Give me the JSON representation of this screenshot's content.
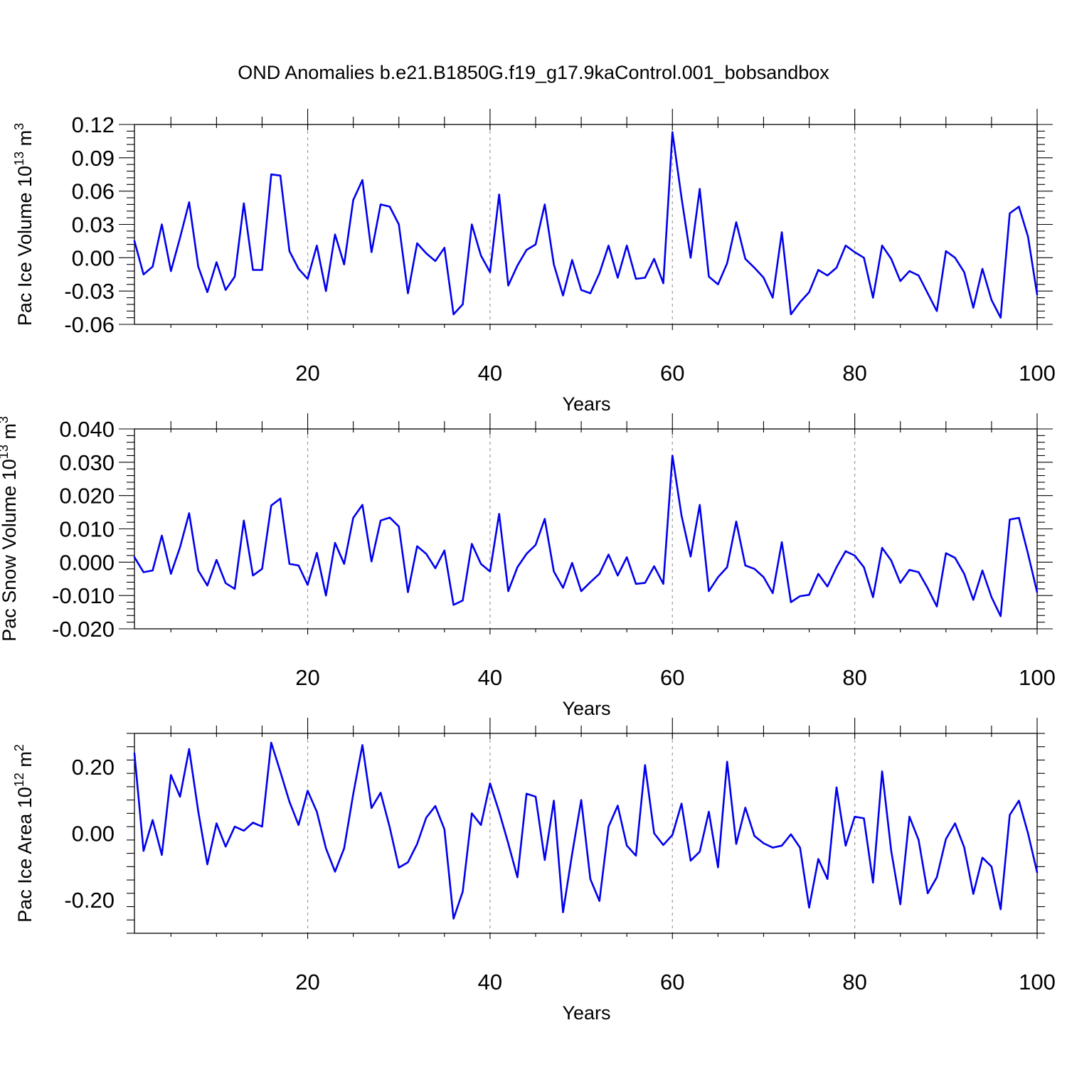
{
  "figure": {
    "title": "OND Anomalies b.e21.B1850G.f19_g17.9kaControl.001_bobsandbox",
    "line_color": "#0000ee"
  },
  "chart_data": [
    {
      "type": "line",
      "title": "",
      "xlabel": "Years",
      "ylabel": "Pac Ice Volume 10",
      "ylabel_exp": "13",
      "ylabel_unit": "m",
      "ylabel_unit_exp": "3",
      "xlim": [
        1,
        100
      ],
      "ylim": [
        -0.06,
        0.12
      ],
      "x_ticks": [
        20,
        40,
        60,
        80,
        100
      ],
      "y_ticks": [
        -0.06,
        -0.03,
        0.0,
        0.03,
        0.06,
        0.09,
        0.12
      ],
      "y_tick_labels": [
        "-0.06",
        "-0.03",
        "0.00",
        "0.03",
        "0.06",
        "0.09",
        "0.12"
      ],
      "grid": "vertical dashed at x ticks",
      "x": [
        1,
        2,
        3,
        4,
        5,
        6,
        7,
        8,
        9,
        10,
        11,
        12,
        13,
        14,
        15,
        16,
        17,
        18,
        19,
        20,
        21,
        22,
        23,
        24,
        25,
        26,
        27,
        28,
        29,
        30,
        31,
        32,
        33,
        34,
        35,
        36,
        37,
        38,
        39,
        40,
        41,
        42,
        43,
        44,
        45,
        46,
        47,
        48,
        49,
        50,
        51,
        52,
        53,
        54,
        55,
        56,
        57,
        58,
        59,
        60,
        61,
        62,
        63,
        64,
        65,
        66,
        67,
        68,
        69,
        70,
        71,
        72,
        73,
        74,
        75,
        76,
        77,
        78,
        79,
        80,
        81,
        82,
        83,
        84,
        85,
        86,
        87,
        88,
        89,
        90,
        91,
        92,
        93,
        94,
        95,
        96,
        97,
        98,
        99,
        100
      ],
      "series": [
        {
          "values": [
            0.015,
            -0.015,
            -0.008,
            0.03,
            -0.012,
            0.018,
            0.05,
            -0.008,
            -0.031,
            -0.004,
            -0.029,
            -0.017,
            0.049,
            -0.011,
            -0.011,
            0.075,
            0.074,
            0.006,
            -0.01,
            -0.019,
            0.011,
            -0.03,
            0.021,
            -0.006,
            0.052,
            0.07,
            0.005,
            0.048,
            0.046,
            0.03,
            -0.032,
            0.013,
            0.004,
            -0.003,
            0.009,
            -0.051,
            -0.042,
            0.03,
            0.002,
            -0.013,
            0.057,
            -0.025,
            -0.007,
            0.007,
            0.012,
            0.048,
            -0.006,
            -0.034,
            -0.002,
            -0.029,
            -0.032,
            -0.014,
            0.011,
            -0.018,
            0.011,
            -0.019,
            -0.018,
            -0.001,
            -0.023,
            0.113,
            0.054,
            0.0,
            0.062,
            -0.017,
            -0.024,
            -0.005,
            0.032,
            -0.001,
            -0.009,
            -0.018,
            -0.036,
            0.023,
            -0.051,
            -0.04,
            -0.031,
            -0.011,
            -0.016,
            -0.009,
            0.011,
            0.005,
            0.0,
            -0.036,
            0.011,
            -0.001,
            -0.021,
            -0.012,
            -0.016,
            -0.032,
            -0.048,
            0.006,
            0.0,
            -0.013,
            -0.045,
            -0.01,
            -0.038,
            -0.054,
            0.04,
            0.046,
            0.019,
            -0.033
          ]
        }
      ]
    },
    {
      "type": "line",
      "title": "",
      "xlabel": "Years",
      "ylabel": "Pac Snow Volume 10",
      "ylabel_exp": "13",
      "ylabel_unit": "m",
      "ylabel_unit_exp": "3",
      "xlim": [
        1,
        100
      ],
      "ylim": [
        -0.02,
        0.04
      ],
      "x_ticks": [
        20,
        40,
        60,
        80,
        100
      ],
      "y_ticks": [
        -0.02,
        -0.01,
        0.0,
        0.01,
        0.02,
        0.03,
        0.04
      ],
      "y_tick_labels": [
        "-0.020",
        "-0.010",
        "0.000",
        "0.010",
        "0.020",
        "0.030",
        "0.040"
      ],
      "grid": "vertical dashed at x ticks",
      "x": [
        1,
        2,
        3,
        4,
        5,
        6,
        7,
        8,
        9,
        10,
        11,
        12,
        13,
        14,
        15,
        16,
        17,
        18,
        19,
        20,
        21,
        22,
        23,
        24,
        25,
        26,
        27,
        28,
        29,
        30,
        31,
        32,
        33,
        34,
        35,
        36,
        37,
        38,
        39,
        40,
        41,
        42,
        43,
        44,
        45,
        46,
        47,
        48,
        49,
        50,
        51,
        52,
        53,
        54,
        55,
        56,
        57,
        58,
        59,
        60,
        61,
        62,
        63,
        64,
        65,
        66,
        67,
        68,
        69,
        70,
        71,
        72,
        73,
        74,
        75,
        76,
        77,
        78,
        79,
        80,
        81,
        82,
        83,
        84,
        85,
        86,
        87,
        88,
        89,
        90,
        91,
        92,
        93,
        94,
        95,
        96,
        97,
        98,
        99,
        100
      ],
      "series": [
        {
          "values": [
            0.0015,
            -0.003,
            -0.0025,
            0.008,
            -0.0035,
            0.0045,
            0.0147,
            -0.0025,
            -0.007,
            0.0007,
            -0.0063,
            -0.008,
            0.0125,
            -0.004,
            -0.002,
            0.017,
            0.0191,
            -0.0005,
            -0.001,
            -0.0068,
            0.0028,
            -0.01,
            0.0058,
            -0.0005,
            0.0133,
            0.0172,
            0.0002,
            0.0125,
            0.0134,
            0.0107,
            -0.009,
            0.0048,
            0.0025,
            -0.0018,
            0.0035,
            -0.0128,
            -0.0115,
            0.0055,
            -0.0005,
            -0.0028,
            0.0145,
            -0.0087,
            -0.0015,
            0.0025,
            0.0052,
            0.013,
            -0.0028,
            -0.0077,
            -0.0002,
            -0.0087,
            -0.006,
            -0.0035,
            0.0023,
            -0.004,
            0.0015,
            -0.0065,
            -0.0062,
            -0.0012,
            -0.0065,
            0.032,
            0.014,
            0.0017,
            0.0172,
            -0.0087,
            -0.0045,
            -0.0015,
            0.0122,
            -0.001,
            -0.002,
            -0.0045,
            -0.0093,
            0.006,
            -0.012,
            -0.0102,
            -0.0098,
            -0.0035,
            -0.0073,
            -0.0015,
            0.0033,
            0.002,
            -0.0015,
            -0.0105,
            0.0043,
            0.0005,
            -0.0062,
            -0.0023,
            -0.003,
            -0.0078,
            -0.0133,
            0.0027,
            0.0013,
            -0.0035,
            -0.0113,
            -0.0025,
            -0.0105,
            -0.0162,
            0.0128,
            0.0133,
            0.0025,
            -0.009
          ]
        }
      ]
    },
    {
      "type": "line",
      "title": "",
      "xlabel": "Years",
      "ylabel": "Pac Ice Area 10",
      "ylabel_exp": "12",
      "ylabel_unit": "m",
      "ylabel_unit_exp": "2",
      "xlim": [
        1,
        100
      ],
      "ylim": [
        -0.3,
        0.3
      ],
      "x_ticks": [
        20,
        40,
        60,
        80,
        100
      ],
      "y_ticks": [
        -0.2,
        0.0,
        0.2
      ],
      "y_tick_labels": [
        "-0.20",
        "0.00",
        "0.20"
      ],
      "grid": "vertical dashed at x ticks",
      "x": [
        1,
        2,
        3,
        4,
        5,
        6,
        7,
        8,
        9,
        10,
        11,
        12,
        13,
        14,
        15,
        16,
        17,
        18,
        19,
        20,
        21,
        22,
        23,
        24,
        25,
        26,
        27,
        28,
        29,
        30,
        31,
        32,
        33,
        34,
        35,
        36,
        37,
        38,
        39,
        40,
        41,
        42,
        43,
        44,
        45,
        46,
        47,
        48,
        49,
        50,
        51,
        52,
        53,
        54,
        55,
        56,
        57,
        58,
        59,
        60,
        61,
        62,
        63,
        64,
        65,
        66,
        67,
        68,
        69,
        70,
        71,
        72,
        73,
        74,
        75,
        76,
        77,
        78,
        79,
        80,
        81,
        82,
        83,
        84,
        85,
        86,
        87,
        88,
        89,
        90,
        91,
        92,
        93,
        94,
        95,
        96,
        97,
        98,
        99,
        100
      ],
      "series": [
        {
          "values": [
            0.24,
            -0.053,
            0.04,
            -0.065,
            0.175,
            0.11,
            0.253,
            0.066,
            -0.093,
            0.03,
            -0.04,
            0.02,
            0.008,
            0.032,
            0.02,
            0.272,
            0.185,
            0.095,
            0.025,
            0.128,
            0.065,
            -0.045,
            -0.115,
            -0.045,
            0.118,
            0.265,
            0.076,
            0.122,
            0.018,
            -0.103,
            -0.087,
            -0.032,
            0.047,
            0.082,
            0.012,
            -0.256,
            -0.175,
            0.06,
            0.025,
            0.15,
            0.065,
            -0.03,
            -0.132,
            0.119,
            0.11,
            -0.08,
            0.098,
            -0.237,
            -0.062,
            0.1,
            -0.137,
            -0.203,
            0.02,
            0.083,
            -0.037,
            -0.067,
            0.205,
            0.0,
            -0.035,
            -0.005,
            0.089,
            -0.082,
            -0.055,
            0.065,
            -0.102,
            0.215,
            -0.032,
            0.077,
            -0.008,
            -0.03,
            -0.043,
            -0.037,
            -0.003,
            -0.043,
            -0.223,
            -0.077,
            -0.137,
            0.138,
            -0.037,
            0.05,
            0.045,
            -0.148,
            0.186,
            -0.053,
            -0.213,
            0.05,
            -0.02,
            -0.18,
            -0.132,
            -0.017,
            0.03,
            -0.042,
            -0.182,
            -0.073,
            -0.1,
            -0.228,
            0.055,
            0.098,
            0.0,
            -0.117
          ]
        }
      ]
    }
  ]
}
